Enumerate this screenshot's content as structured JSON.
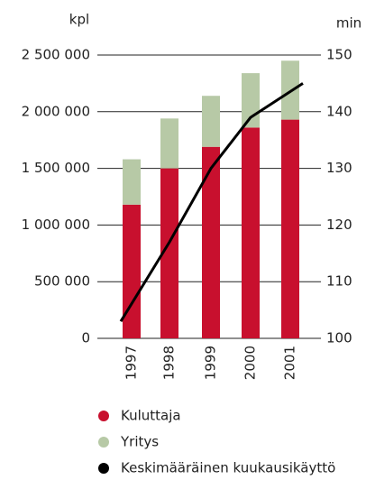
{
  "chart_data": {
    "type": "bar",
    "y_label": "kpl",
    "y2_label": "min",
    "categories": [
      "1997",
      "1998",
      "1999",
      "2000",
      "2001"
    ],
    "series": [
      {
        "name": "Kuluttaja",
        "color": "#c8102e",
        "values": [
          1180000,
          1500000,
          1690000,
          1860000,
          1930000
        ]
      },
      {
        "name": "Yritys",
        "color": "#b7c9a6",
        "values": [
          400000,
          440000,
          450000,
          480000,
          520000
        ]
      },
      {
        "name": "Keskimääräinen kuukausikäyttö",
        "color": "#000000",
        "type": "line",
        "axis": "y2",
        "values": [
          103,
          117,
          130,
          139,
          145
        ]
      }
    ],
    "stacked": true,
    "ylim": [
      0,
      2500000
    ],
    "yticks": [
      0,
      {
        "value": 500000,
        "label": "500 000"
      },
      {
        "value": 1000000,
        "label": "1 000 000"
      },
      {
        "value": 1500000,
        "label": "1 500 000"
      },
      {
        "value": 2000000,
        "label": "2 000 000"
      },
      {
        "value": 2500000,
        "label": "2 500 000"
      }
    ],
    "y2lim": [
      100,
      150
    ],
    "y2ticks": [
      100,
      110,
      120,
      130,
      140,
      150
    ],
    "grid": true
  }
}
